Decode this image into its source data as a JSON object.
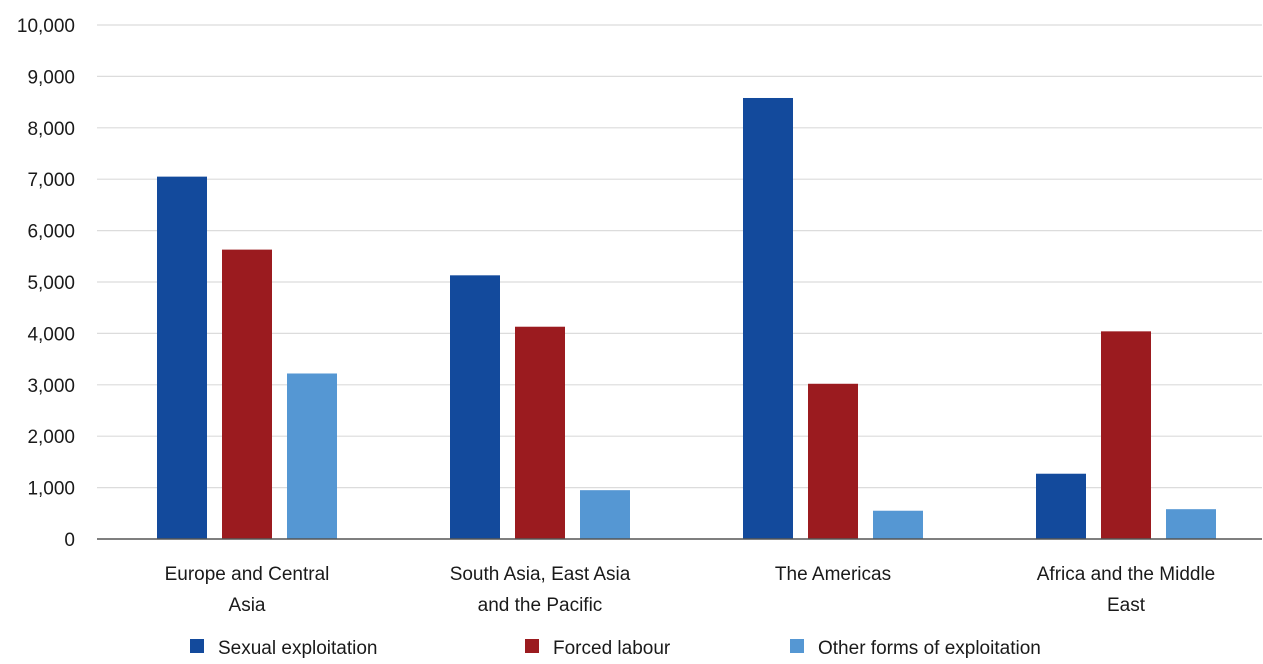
{
  "chart_data": {
    "type": "bar",
    "title": "",
    "xlabel": "",
    "ylabel": "",
    "ylim": [
      0,
      10000
    ],
    "yticks": [
      0,
      1000,
      2000,
      3000,
      4000,
      5000,
      6000,
      7000,
      8000,
      9000,
      10000
    ],
    "ytick_labels": [
      "0",
      "1,000",
      "2,000",
      "3,000",
      "4,000",
      "5,000",
      "6,000",
      "7,000",
      "8,000",
      "9,000",
      "10,000"
    ],
    "grid": true,
    "legend_position": "bottom",
    "categories": [
      [
        "Europe and Central",
        "Asia"
      ],
      [
        "South Asia, East Asia",
        "and the Pacific"
      ],
      [
        "The Americas"
      ],
      [
        "Africa and the Middle",
        "East"
      ]
    ],
    "series": [
      {
        "name": "Sexual exploitation",
        "color": "#134a9c",
        "values": [
          7050,
          5130,
          8580,
          1270
        ]
      },
      {
        "name": "Forced labour",
        "color": "#9b1b1f",
        "values": [
          5630,
          4130,
          3020,
          4040
        ]
      },
      {
        "name": "Other forms of exploitation",
        "color": "#5597d3",
        "values": [
          3220,
          950,
          550,
          580
        ]
      }
    ]
  }
}
